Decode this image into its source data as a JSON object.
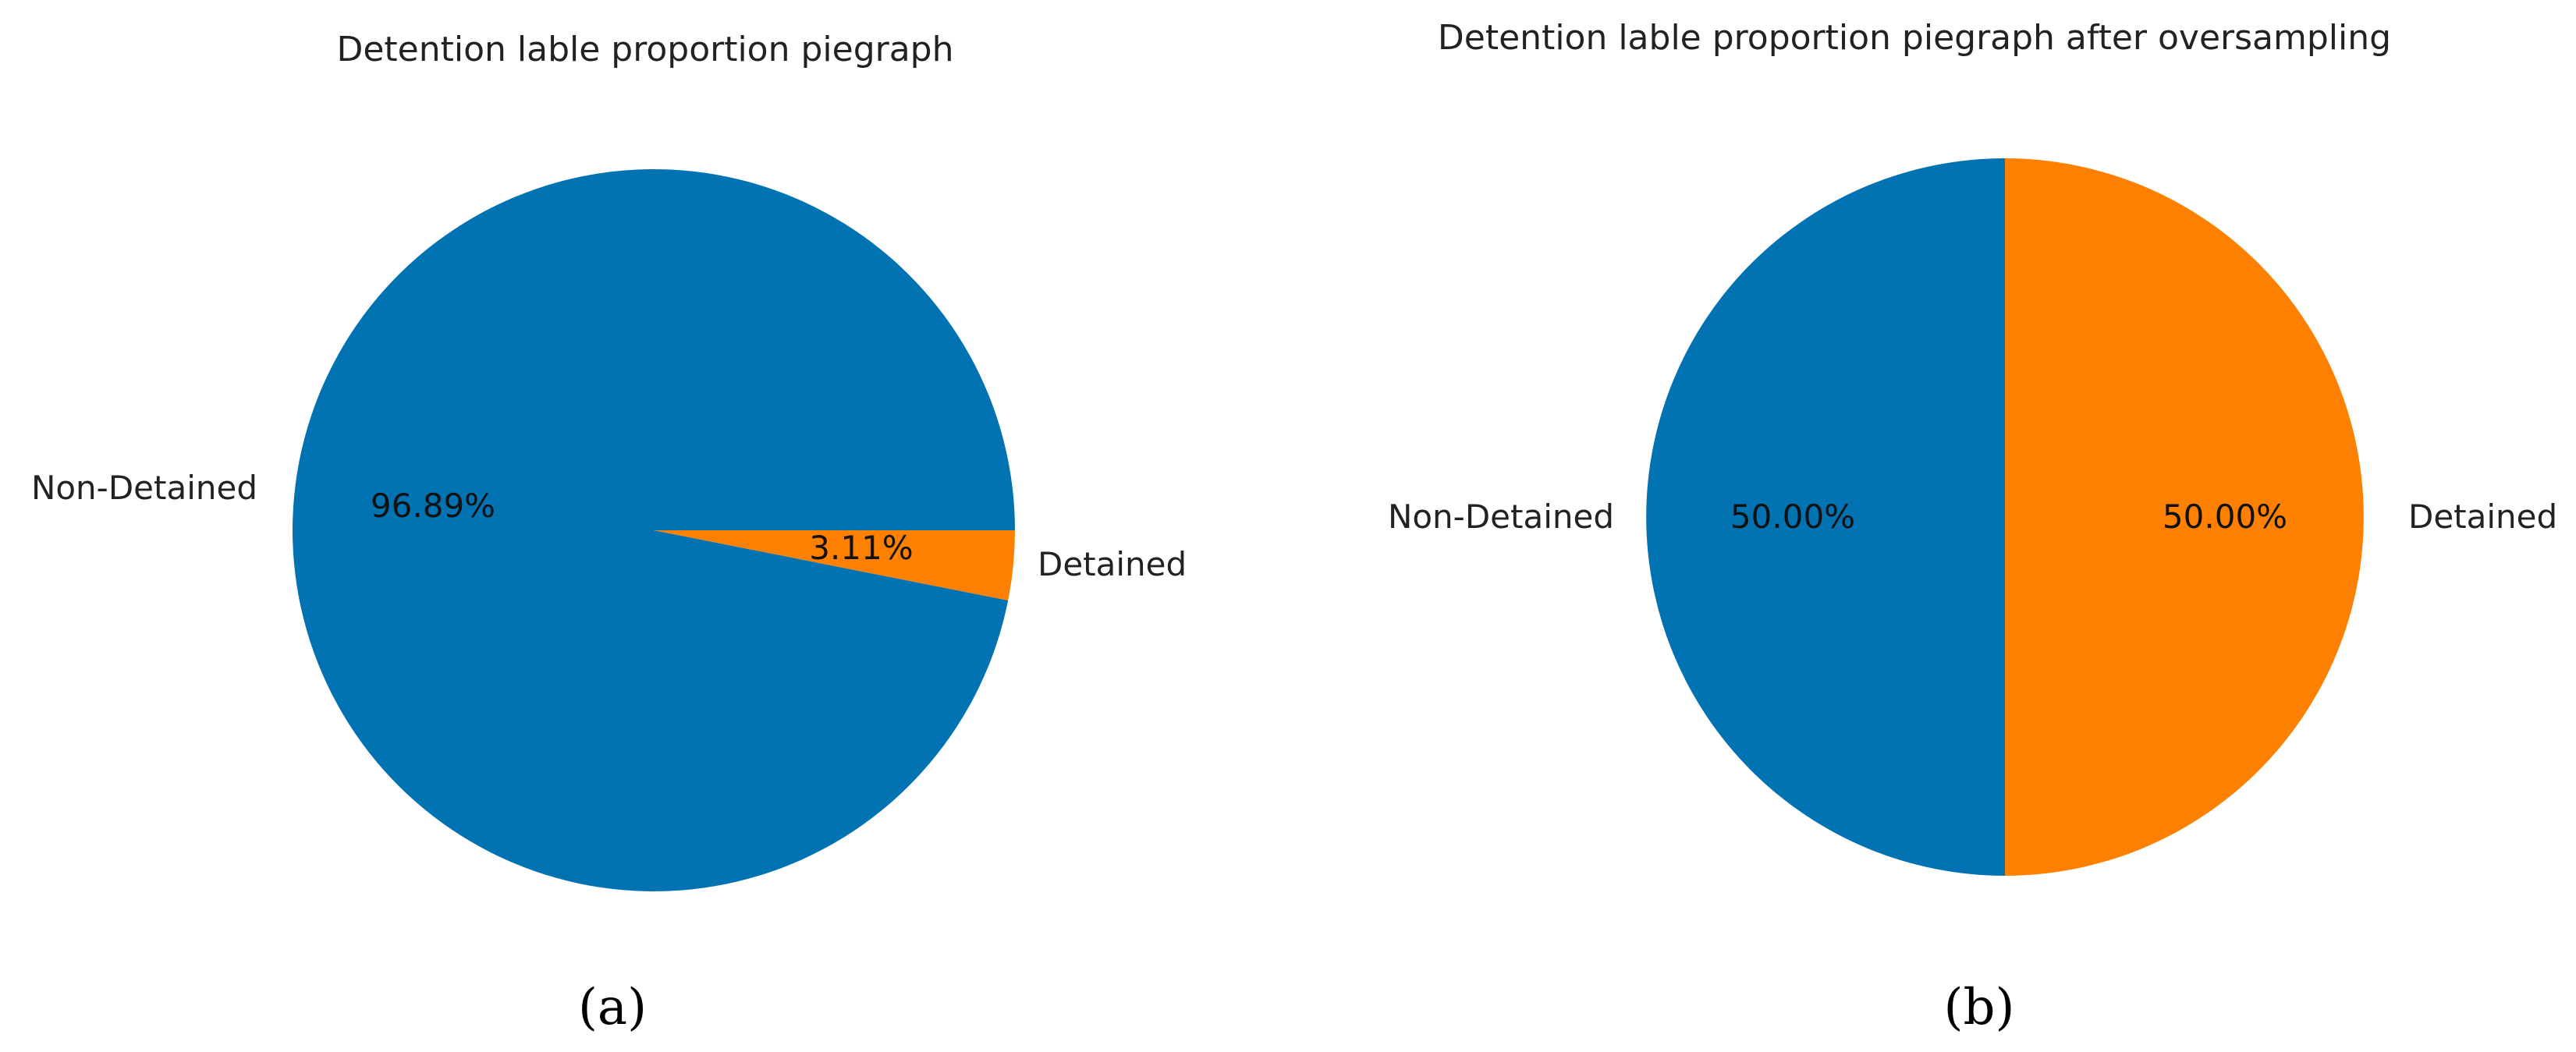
{
  "chart_data": [
    {
      "type": "pie",
      "panel_label": "(a)",
      "title": "Detention lable proportion piegraph",
      "categories": [
        "Non-Detained",
        "Detained"
      ],
      "values": [
        96.89,
        3.11
      ],
      "value_labels": [
        "96.89%",
        "3.11%"
      ],
      "colors": [
        "#0173b2",
        "#fe8000"
      ]
    },
    {
      "type": "pie",
      "panel_label": "(b)",
      "title": "Detention lable proportion piegraph after oversampling",
      "categories": [
        "Non-Detained",
        "Detained"
      ],
      "values": [
        50.0,
        50.0
      ],
      "value_labels": [
        "50.00%",
        "50.00%"
      ],
      "colors": [
        "#0173b2",
        "#fe8000"
      ]
    }
  ]
}
